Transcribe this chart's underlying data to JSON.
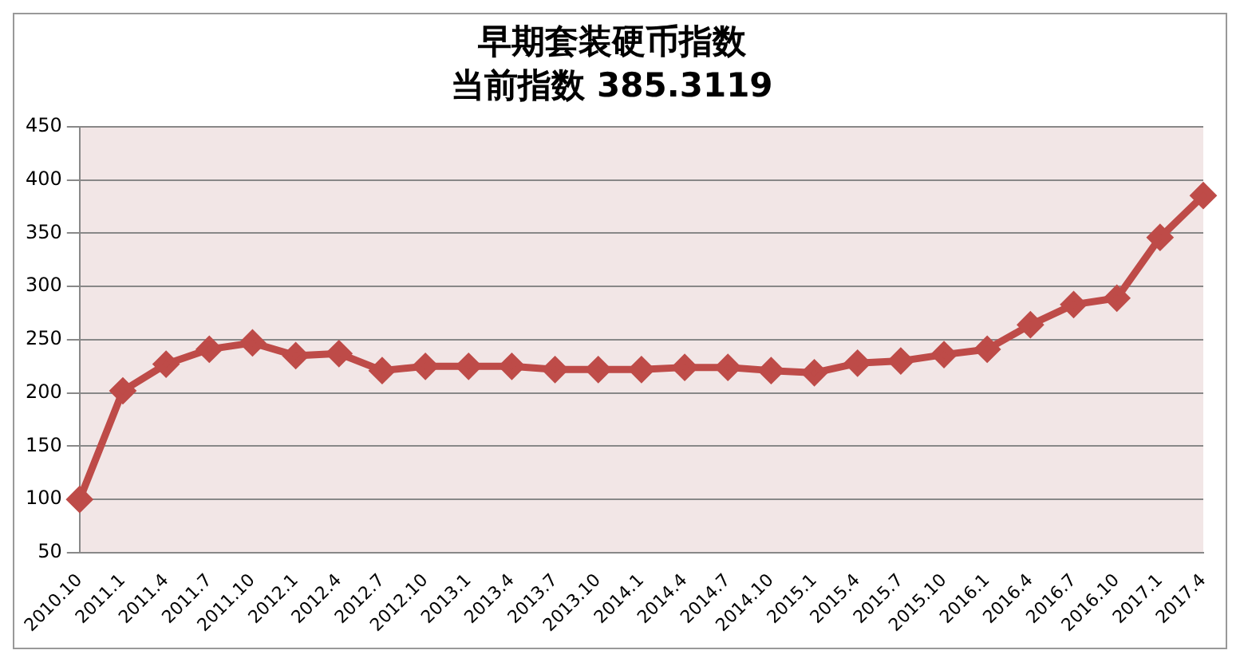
{
  "chart_data": {
    "type": "line",
    "title": "早期套装硬币指数",
    "subtitle": "当前指数 385.3119",
    "categories": [
      "2010.10",
      "2011.1",
      "2011.4",
      "2011.7",
      "2011.10",
      "2012.1",
      "2012.4",
      "2012.7",
      "2012.10",
      "2013.1",
      "2013.4",
      "2013.7",
      "2013.10",
      "2014.1",
      "2014.4",
      "2014.7",
      "2014.10",
      "2015.1",
      "2015.4",
      "2015.7",
      "2015.10",
      "2016.1",
      "2016.4",
      "2016.7",
      "2016.10",
      "2017.1",
      "2017.4"
    ],
    "series": [
      {
        "color": "#be4b48",
        "values": [
          100,
          202,
          227,
          241,
          247,
          235,
          237,
          221,
          225,
          225,
          225,
          222,
          222,
          222,
          224,
          224,
          221,
          219,
          228,
          230,
          236,
          241,
          264,
          283,
          289,
          346,
          385.3119
        ]
      }
    ],
    "ylim": [
      50,
      450
    ],
    "yticks": [
      50,
      100,
      150,
      200,
      250,
      300,
      350,
      400,
      450
    ],
    "grid": "y",
    "legend": false,
    "marker": "diamond",
    "line_style": "solid"
  }
}
